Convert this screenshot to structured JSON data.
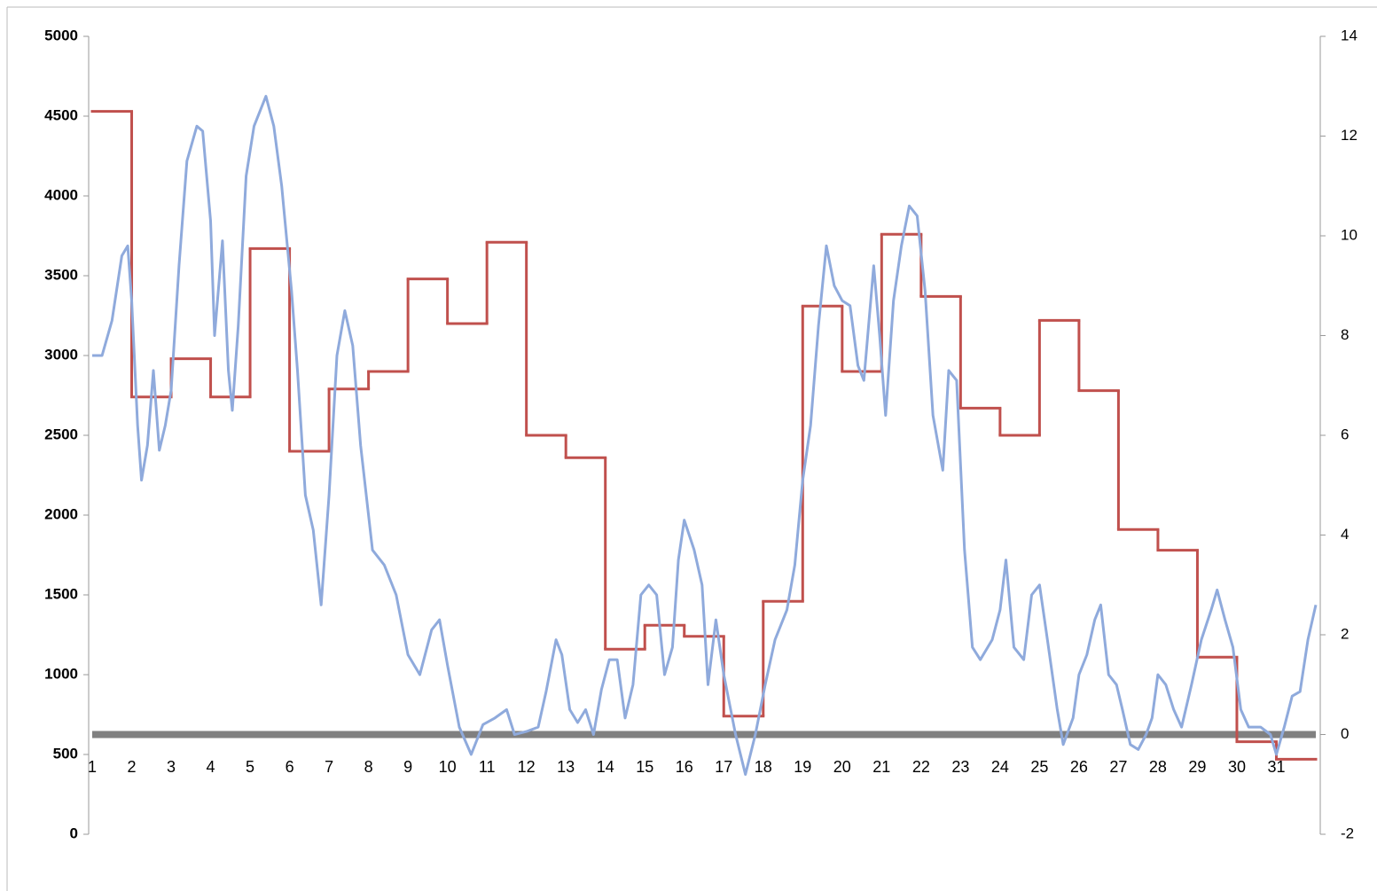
{
  "chart_data": {
    "type": "line",
    "xlim": [
      1,
      32
    ],
    "xticks": [
      1,
      2,
      3,
      4,
      5,
      6,
      7,
      8,
      9,
      10,
      11,
      12,
      13,
      14,
      15,
      16,
      17,
      18,
      19,
      20,
      21,
      22,
      23,
      24,
      25,
      26,
      27,
      28,
      29,
      30,
      31
    ],
    "ylim": [
      0,
      5000
    ],
    "yticks": [
      0,
      500,
      1000,
      1500,
      2000,
      2500,
      3000,
      3500,
      4000,
      4500,
      5000
    ],
    "y2lim": [
      -2,
      14
    ],
    "y2ticks": [
      -2,
      0,
      2,
      4,
      6,
      8,
      10,
      12,
      14
    ],
    "series": [
      {
        "color": "#c0504d",
        "step": "post",
        "x": [
          1,
          2,
          3,
          4,
          5,
          6,
          7,
          8,
          9,
          10,
          11,
          12,
          13,
          14,
          15,
          16,
          17,
          18,
          19,
          20,
          21,
          22,
          23,
          24,
          25,
          26,
          27,
          28,
          29,
          30,
          31
        ],
        "values": [
          4530,
          2740,
          2980,
          2740,
          3670,
          2400,
          2790,
          2900,
          3480,
          3200,
          3710,
          2500,
          2360,
          1160,
          1310,
          1240,
          740,
          1460,
          3310,
          2900,
          3760,
          3370,
          2670,
          2500,
          3220,
          2780,
          1910,
          1780,
          1110,
          580,
          470
        ]
      },
      {
        "color": "#8faadc",
        "axis": "y2",
        "x": [
          1,
          1.25,
          1.5,
          1.75,
          1.9,
          2,
          2.15,
          2.25,
          2.4,
          2.55,
          2.7,
          2.85,
          3,
          3.2,
          3.4,
          3.65,
          3.8,
          4,
          4.1,
          4.3,
          4.45,
          4.55,
          4.7,
          4.9,
          5.1,
          5.4,
          5.6,
          5.8,
          6.05,
          6.2,
          6.4,
          6.6,
          6.8,
          7,
          7.2,
          7.4,
          7.6,
          7.8,
          8.1,
          8.4,
          8.7,
          9,
          9.3,
          9.6,
          9.8,
          10,
          10.3,
          10.6,
          10.9,
          11.2,
          11.5,
          11.7,
          12,
          12.3,
          12.5,
          12.75,
          12.9,
          13.1,
          13.3,
          13.5,
          13.7,
          13.9,
          14.1,
          14.3,
          14.5,
          14.7,
          14.9,
          15.1,
          15.3,
          15.5,
          15.7,
          15.85,
          16,
          16.25,
          16.45,
          16.6,
          16.8,
          17,
          17.3,
          17.55,
          17.8,
          18.05,
          18.3,
          18.6,
          18.8,
          19,
          19.2,
          19.4,
          19.6,
          19.8,
          20,
          20.2,
          20.4,
          20.55,
          20.8,
          20.95,
          21.1,
          21.3,
          21.5,
          21.7,
          21.9,
          22.1,
          22.3,
          22.55,
          22.7,
          22.9,
          23.1,
          23.3,
          23.5,
          23.8,
          24,
          24.15,
          24.35,
          24.6,
          24.8,
          25,
          25.2,
          25.45,
          25.6,
          25.85,
          26,
          26.2,
          26.4,
          26.55,
          26.75,
          26.95,
          27.1,
          27.3,
          27.5,
          27.7,
          27.85,
          28,
          28.2,
          28.4,
          28.6,
          28.85,
          29.1,
          29.35,
          29.5,
          29.7,
          29.9,
          30.1,
          30.3,
          30.6,
          30.85,
          31,
          31.2,
          31.4,
          31.6,
          31.8,
          32
        ],
        "values": [
          7.6,
          7.6,
          8.3,
          9.6,
          9.8,
          8.7,
          6.2,
          5.1,
          5.8,
          7.3,
          5.7,
          6.2,
          6.9,
          9.4,
          11.5,
          12.2,
          12.1,
          10.3,
          8.0,
          9.9,
          7.3,
          6.5,
          8.2,
          11.2,
          12.2,
          12.8,
          12.2,
          11.0,
          8.9,
          7.3,
          4.8,
          4.1,
          2.6,
          4.8,
          7.6,
          8.5,
          7.8,
          5.8,
          3.7,
          3.4,
          2.8,
          1.6,
          1.2,
          2.1,
          2.3,
          1.4,
          0.15,
          -0.4,
          0.2,
          0.33,
          0.5,
          0,
          0.06,
          0.15,
          0.86,
          1.9,
          1.6,
          0.5,
          0.24,
          0.5,
          0,
          0.9,
          1.5,
          1.5,
          0.33,
          1.0,
          2.8,
          3.0,
          2.8,
          1.2,
          1.75,
          3.5,
          4.3,
          3.7,
          3.0,
          1.0,
          2.3,
          1.2,
          0,
          -0.8,
          0,
          1.0,
          1.9,
          2.5,
          3.4,
          5.1,
          6.2,
          8.2,
          9.8,
          9.0,
          8.7,
          8.6,
          7.4,
          7.1,
          9.4,
          8.0,
          6.4,
          8.7,
          9.8,
          10.6,
          10.4,
          8.9,
          6.4,
          5.3,
          7.3,
          7.1,
          3.7,
          1.75,
          1.5,
          1.9,
          2.5,
          3.5,
          1.75,
          1.5,
          2.8,
          3.0,
          1.9,
          0.5,
          -0.2,
          0.33,
          1.2,
          1.6,
          2.3,
          2.6,
          1.2,
          1.0,
          0.5,
          -0.2,
          -0.3,
          0,
          0.33,
          1.2,
          1.0,
          0.5,
          0.15,
          1.0,
          1.9,
          2.5,
          2.9,
          2.3,
          1.75,
          0.5,
          0.15,
          0.15,
          0,
          -0.4,
          0.15,
          0.77,
          0.86,
          1.9,
          2.6
        ]
      },
      {
        "color": "#808080",
        "axis": "y2",
        "x": [
          1,
          32
        ],
        "values": [
          0,
          0
        ]
      }
    ]
  }
}
